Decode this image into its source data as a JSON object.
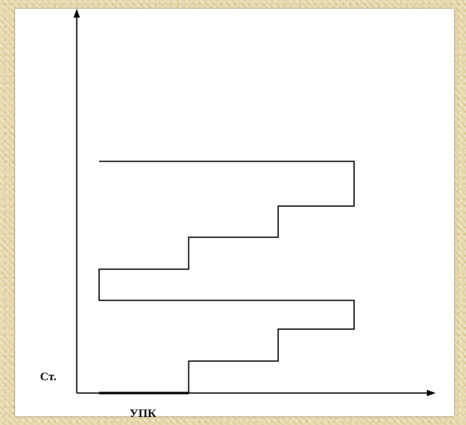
{
  "diagram": {
    "y_axis_label": "Ст.",
    "x_axis_label": "УПК",
    "colors": {
      "line": "#000000",
      "background": "#ffffff",
      "frame": "#e8d9b0"
    }
  }
}
